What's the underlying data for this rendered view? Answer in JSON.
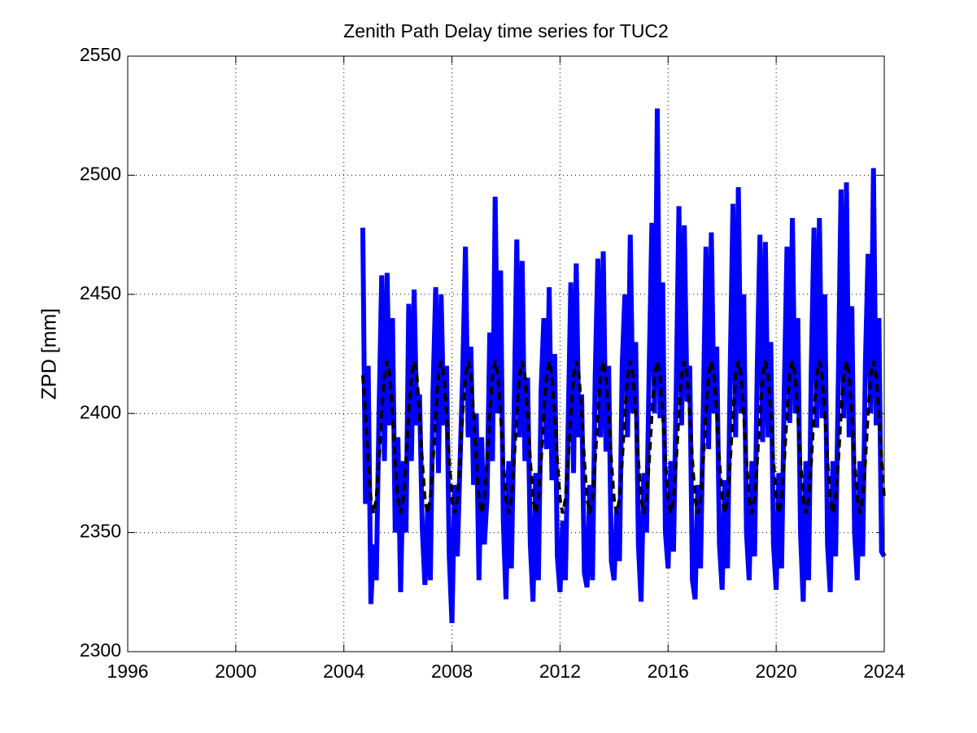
{
  "chart_data": {
    "type": "line",
    "title": "Zenith Path Delay time series for TUC2",
    "y_label": "ZPD [mm]",
    "xlim": [
      1996,
      2024
    ],
    "xticks": [
      1996,
      2000,
      2004,
      2008,
      2012,
      2016,
      2020,
      2024
    ],
    "ylim": [
      2300,
      2550
    ],
    "yticks": [
      2300,
      2350,
      2400,
      2450,
      2500,
      2550
    ],
    "grid": true,
    "x": [
      2004.7,
      2004.8,
      2004.9,
      2005.0,
      2005.1,
      2005.2,
      2005.3,
      2005.4,
      2005.5,
      2005.6,
      2005.7,
      2005.8,
      2005.9,
      2006.0,
      2006.1,
      2006.2,
      2006.3,
      2006.4,
      2006.5,
      2006.6,
      2006.7,
      2006.8,
      2006.9,
      2007.0,
      2007.1,
      2007.2,
      2007.3,
      2007.4,
      2007.5,
      2007.6,
      2007.7,
      2007.8,
      2007.9,
      2008.0,
      2008.1,
      2008.2,
      2008.3,
      2008.4,
      2008.5,
      2008.6,
      2008.7,
      2008.8,
      2008.9,
      2009.0,
      2009.1,
      2009.2,
      2009.3,
      2009.4,
      2009.5,
      2009.6,
      2009.7,
      2009.8,
      2009.9,
      2010.0,
      2010.1,
      2010.2,
      2010.3,
      2010.4,
      2010.5,
      2010.6,
      2010.7,
      2010.8,
      2010.9,
      2011.0,
      2011.1,
      2011.2,
      2011.3,
      2011.4,
      2011.5,
      2011.6,
      2011.7,
      2011.8,
      2011.9,
      2012.0,
      2012.1,
      2012.2,
      2012.3,
      2012.4,
      2012.5,
      2012.6,
      2012.7,
      2012.8,
      2012.9,
      2013.0,
      2013.1,
      2013.2,
      2013.3,
      2013.4,
      2013.5,
      2013.6,
      2013.7,
      2013.8,
      2013.9,
      2014.0,
      2014.1,
      2014.2,
      2014.3,
      2014.4,
      2014.5,
      2014.6,
      2014.7,
      2014.8,
      2014.9,
      2015.0,
      2015.1,
      2015.2,
      2015.3,
      2015.4,
      2015.5,
      2015.6,
      2015.7,
      2015.8,
      2015.9,
      2016.0,
      2016.1,
      2016.2,
      2016.3,
      2016.4,
      2016.5,
      2016.6,
      2016.7,
      2016.8,
      2016.9,
      2017.0,
      2017.1,
      2017.2,
      2017.3,
      2017.4,
      2017.5,
      2017.6,
      2017.7,
      2017.8,
      2017.9,
      2018.0,
      2018.1,
      2018.2,
      2018.3,
      2018.4,
      2018.5,
      2018.6,
      2018.7,
      2018.8,
      2018.9,
      2019.0,
      2019.1,
      2019.2,
      2019.3,
      2019.4,
      2019.5,
      2019.6,
      2019.7,
      2019.8,
      2019.9,
      2020.0,
      2020.1,
      2020.2,
      2020.3,
      2020.4,
      2020.5,
      2020.6,
      2020.7,
      2020.8,
      2020.9,
      2021.0,
      2021.1,
      2021.2,
      2021.3,
      2021.4,
      2021.5,
      2021.6,
      2021.7,
      2021.8,
      2021.9,
      2022.0,
      2022.1,
      2022.2,
      2022.3,
      2022.4,
      2022.5,
      2022.6,
      2022.7,
      2022.8,
      2022.9,
      2023.0,
      2023.1,
      2023.2,
      2023.3,
      2023.4,
      2023.5,
      2023.6,
      2023.7,
      2023.8,
      2023.9,
      2024.0
    ],
    "series": [
      {
        "color": "#0000ff",
        "line_style": "solid",
        "values": [
          2478,
          2362,
          2420,
          2320,
          2345,
          2330,
          2400,
          2458,
          2380,
          2459,
          2395,
          2440,
          2350,
          2390,
          2325,
          2380,
          2350,
          2446,
          2380,
          2452,
          2395,
          2408,
          2352,
          2328,
          2360,
          2330,
          2410,
          2453,
          2375,
          2450,
          2395,
          2420,
          2340,
          2312,
          2370,
          2340,
          2380,
          2418,
          2470,
          2390,
          2428,
          2370,
          2400,
          2330,
          2390,
          2345,
          2365,
          2434,
          2380,
          2491,
          2400,
          2460,
          2355,
          2322,
          2380,
          2335,
          2400,
          2473,
          2390,
          2464,
          2380,
          2415,
          2345,
          2321,
          2375,
          2330,
          2410,
          2440,
          2385,
          2453,
          2372,
          2425,
          2340,
          2325,
          2355,
          2330,
          2395,
          2455,
          2375,
          2463,
          2390,
          2408,
          2333,
          2327,
          2370,
          2330,
          2415,
          2465,
          2390,
          2468,
          2384,
          2420,
          2338,
          2330,
          2360,
          2338,
          2420,
          2450,
          2390,
          2475,
          2400,
          2430,
          2345,
          2321,
          2375,
          2350,
          2420,
          2480,
          2400,
          2528,
          2398,
          2455,
          2350,
          2335,
          2380,
          2342,
          2410,
          2487,
          2395,
          2479,
          2405,
          2420,
          2330,
          2322,
          2370,
          2335,
          2400,
          2470,
          2385,
          2476,
          2400,
          2428,
          2345,
          2326,
          2372,
          2335,
          2420,
          2488,
          2390,
          2495,
          2400,
          2450,
          2350,
          2330,
          2380,
          2340,
          2420,
          2475,
          2388,
          2472,
          2390,
          2430,
          2345,
          2326,
          2375,
          2335,
          2410,
          2470,
          2396,
          2482,
          2400,
          2440,
          2350,
          2321,
          2380,
          2330,
          2420,
          2478,
          2394,
          2482,
          2398,
          2450,
          2345,
          2325,
          2380,
          2340,
          2415,
          2494,
          2398,
          2497,
          2390,
          2445,
          2350,
          2330,
          2380,
          2340,
          2420,
          2467,
          2400,
          2503,
          2395,
          2440,
          2342,
          2340
        ]
      },
      {
        "color": "#000000",
        "line_style": "dashed",
        "values": [
          2416,
          2400,
          2380,
          2364,
          2358,
          2364,
          2380,
          2400,
          2416,
          2422,
          2416,
          2400,
          2380,
          2364,
          2358,
          2364,
          2380,
          2400,
          2416,
          2422,
          2416,
          2400,
          2380,
          2364,
          2358,
          2364,
          2380,
          2400,
          2416,
          2422,
          2416,
          2400,
          2380,
          2364,
          2358,
          2364,
          2380,
          2400,
          2416,
          2422,
          2416,
          2400,
          2380,
          2364,
          2358,
          2364,
          2380,
          2400,
          2416,
          2422,
          2416,
          2400,
          2380,
          2364,
          2358,
          2364,
          2380,
          2400,
          2416,
          2422,
          2416,
          2400,
          2380,
          2364,
          2358,
          2364,
          2380,
          2400,
          2416,
          2422,
          2416,
          2400,
          2380,
          2364,
          2358,
          2364,
          2380,
          2400,
          2416,
          2422,
          2416,
          2400,
          2380,
          2364,
          2358,
          2364,
          2380,
          2400,
          2416,
          2422,
          2416,
          2400,
          2380,
          2364,
          2358,
          2364,
          2380,
          2400,
          2416,
          2422,
          2416,
          2400,
          2380,
          2364,
          2358,
          2364,
          2380,
          2400,
          2416,
          2422,
          2416,
          2400,
          2380,
          2364,
          2358,
          2364,
          2380,
          2400,
          2416,
          2422,
          2416,
          2400,
          2380,
          2364,
          2358,
          2364,
          2380,
          2400,
          2416,
          2422,
          2416,
          2400,
          2380,
          2364,
          2358,
          2364,
          2380,
          2400,
          2416,
          2422,
          2416,
          2400,
          2380,
          2364,
          2358,
          2364,
          2380,
          2400,
          2416,
          2422,
          2416,
          2400,
          2380,
          2364,
          2358,
          2364,
          2380,
          2400,
          2416,
          2422,
          2416,
          2400,
          2380,
          2364,
          2358,
          2364,
          2380,
          2400,
          2416,
          2422,
          2416,
          2400,
          2380,
          2364,
          2358,
          2364,
          2380,
          2400,
          2416,
          2422,
          2416,
          2400,
          2380,
          2364,
          2358,
          2364,
          2380,
          2400,
          2416,
          2422,
          2416,
          2400,
          2380,
          2364
        ]
      }
    ]
  }
}
